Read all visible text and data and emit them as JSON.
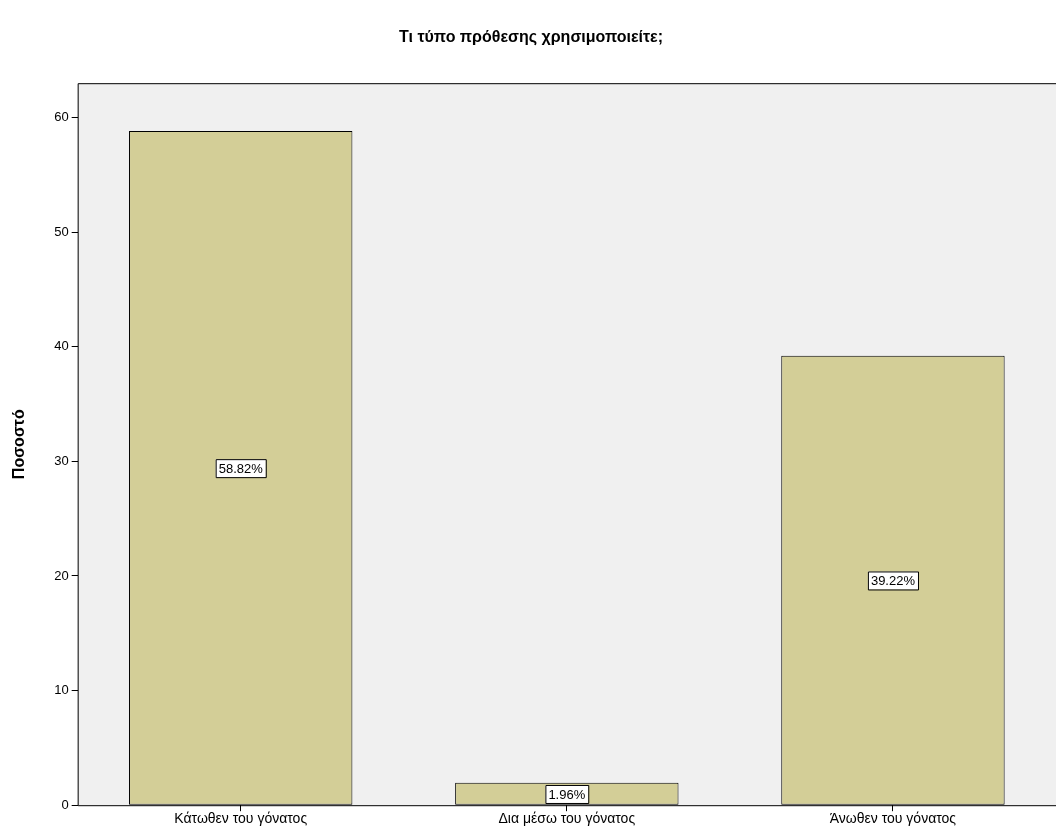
{
  "chart_data": {
    "type": "bar",
    "title": "Τι τύπο πρόθεσης χρησιμοποιείτε;",
    "ylabel": "Ποσοστό",
    "categories": [
      "Κάτωθεν του γόνατος",
      "Δια μέσω του γόνατος",
      "Άνωθεν του γόνατος"
    ],
    "values": [
      58.82,
      1.96,
      39.22
    ],
    "value_labels": [
      "58.82%",
      "1.96%",
      "39.22%"
    ],
    "color": "#d3ce97",
    "ylim": [
      0,
      63
    ],
    "yticks": [
      0,
      10,
      20,
      30,
      40,
      50,
      60
    ],
    "grid": false,
    "legend": false
  }
}
